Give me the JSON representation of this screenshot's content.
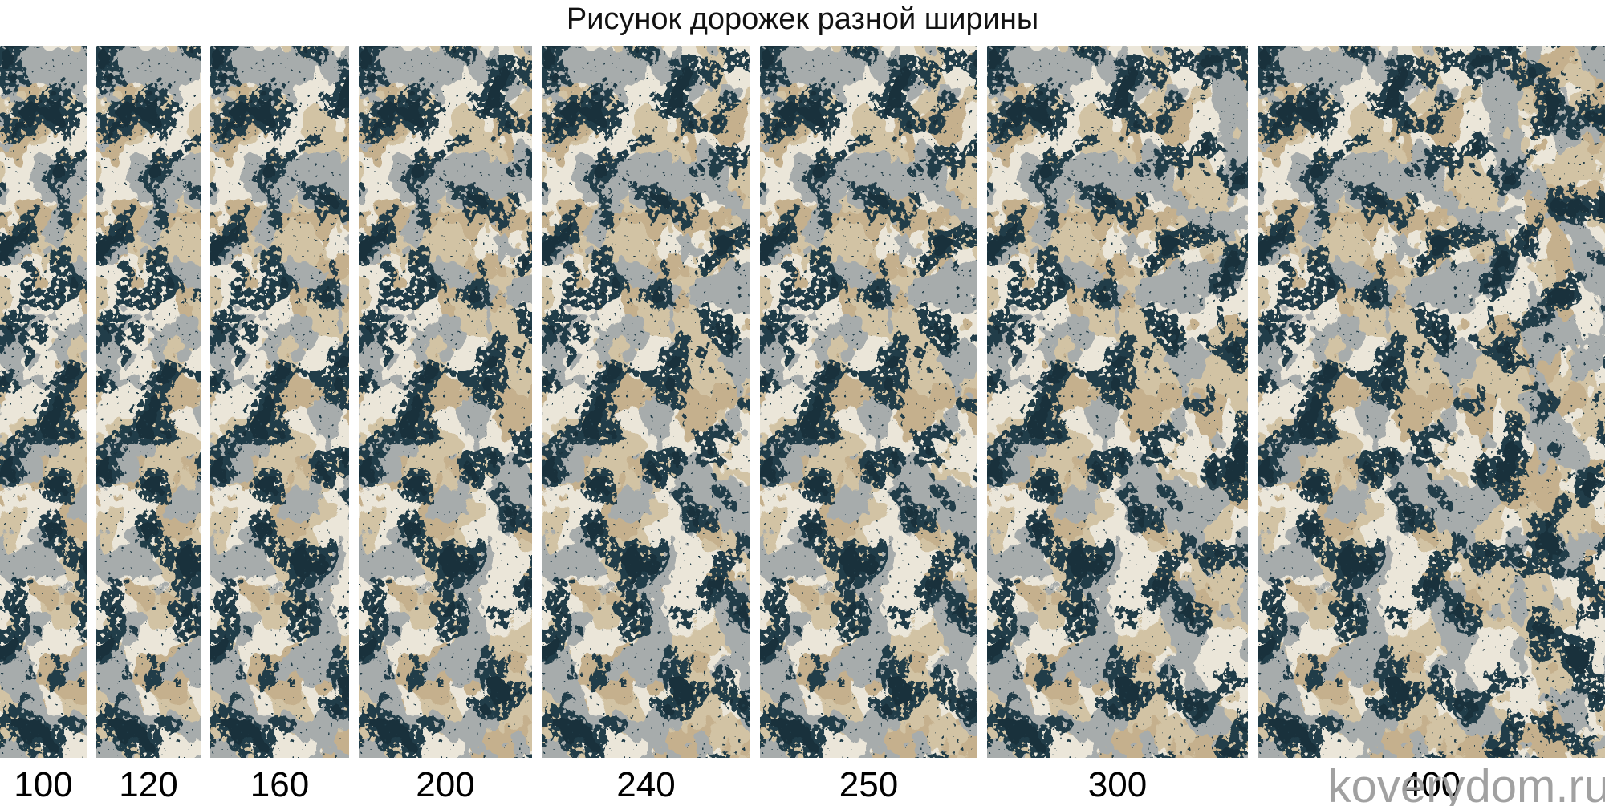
{
  "page": {
    "title": "Рисунок дорожек разной ширины",
    "watermark": "koverydom.ru"
  },
  "runners": [
    {
      "label": "100",
      "width_cm": 100
    },
    {
      "label": "120",
      "width_cm": 120
    },
    {
      "label": "160",
      "width_cm": 160
    },
    {
      "label": "200",
      "width_cm": 200
    },
    {
      "label": "240",
      "width_cm": 240
    },
    {
      "label": "250",
      "width_cm": 250
    },
    {
      "label": "300",
      "width_cm": 300
    },
    {
      "label": "400",
      "width_cm": 400
    }
  ],
  "palette": {
    "background": "#ffffff",
    "title_text": "#121212",
    "label_text": "#000000",
    "watermark_text": "#9c9c9c",
    "carpet_tan": "#d2c3a4",
    "carpet_dark_tan": "#c5b08d",
    "carpet_cream": "#ebe6d9",
    "carpet_gray": "#a7acac",
    "carpet_teal": "#213d49",
    "carpet_teal_dark": "#19313c"
  }
}
